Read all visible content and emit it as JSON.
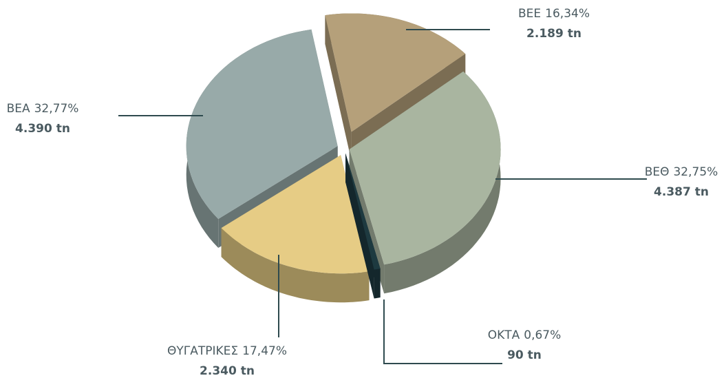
{
  "chart_data": {
    "type": "pie",
    "categories": [
      "ΒΕΕ",
      "ΒΕΘ",
      "ΟΚΤΑ",
      "ΘΥΓΑΤΡΙΚΕΣ",
      "ΒΕΑ"
    ],
    "values": [
      16.34,
      32.75,
      0.67,
      17.47,
      32.77
    ],
    "value_labels": [
      "16,34%",
      "32,75%",
      "0,67%",
      "17,47%",
      "32,77%"
    ],
    "amounts": [
      2189,
      4387,
      90,
      2340,
      4390
    ],
    "amount_labels": [
      "2.189 tn",
      "4.387 tn",
      "90 tn",
      "2.340 tn",
      "4.390 tn"
    ],
    "colors": [
      "#b5a07a",
      "#a9b5a0",
      "#1e3a40",
      "#e6cc85",
      "#98aaa9"
    ]
  }
}
